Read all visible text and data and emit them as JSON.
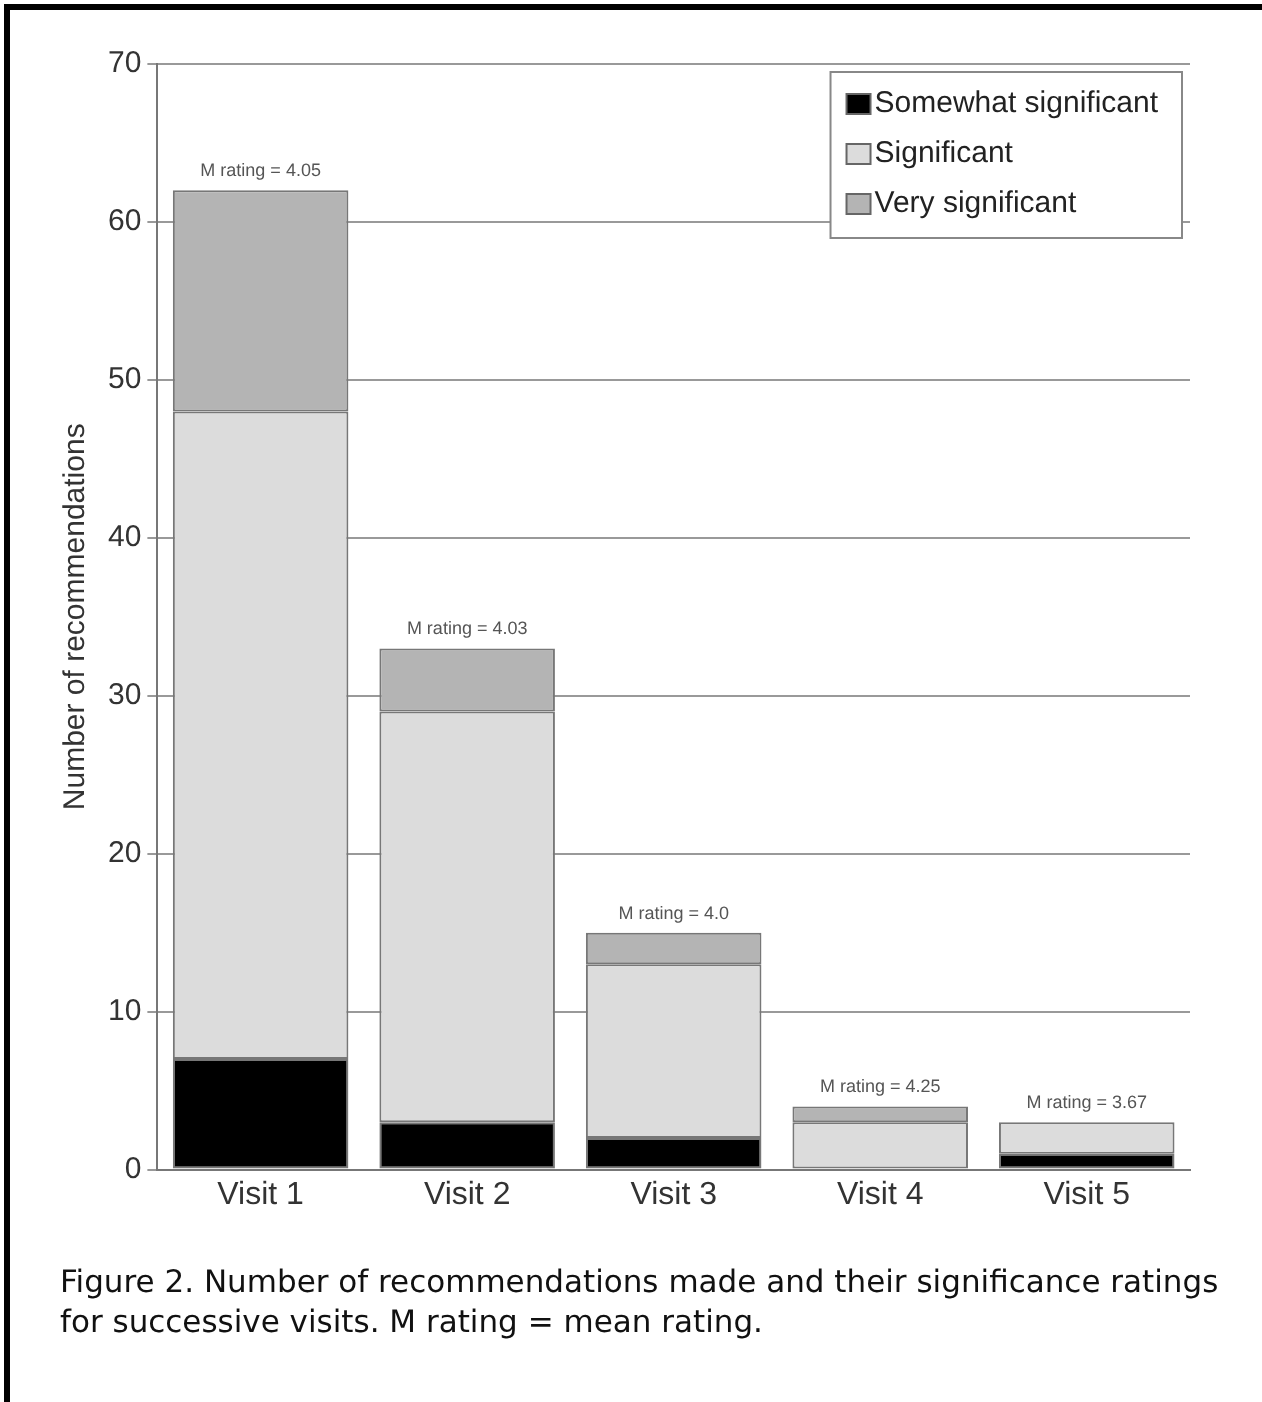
{
  "chart_data": {
    "type": "bar",
    "stacked": true,
    "ylabel": "Number of recommendations",
    "categories": [
      "Visit 1",
      "Visit 2",
      "Visit 3",
      "Visit 4",
      "Visit 5"
    ],
    "series": [
      {
        "name": "Somewhat significant",
        "color": "#000000",
        "values": [
          7,
          3,
          2,
          0,
          1
        ]
      },
      {
        "name": "Significant",
        "color": "#dcdcdc",
        "values": [
          41,
          26,
          11,
          3,
          2
        ]
      },
      {
        "name": "Very significant",
        "color": "#b4b4b4",
        "values": [
          14,
          4,
          2,
          1,
          0
        ]
      }
    ],
    "ylim": [
      0,
      70
    ],
    "yticks": [
      0,
      10,
      20,
      30,
      40,
      50,
      60,
      70
    ],
    "grid": "y",
    "legend": "top right",
    "annotations": [
      {
        "text": "M rating = 4.05",
        "x": "Visit 1",
        "y": 62
      },
      {
        "text": "M rating = 4.03",
        "x": "Visit 2",
        "y": 33
      },
      {
        "text": "M rating = 4.0",
        "x": "Visit 3",
        "y": 15
      },
      {
        "text": "M rating = 4.25",
        "x": "Visit 4",
        "y": 4
      },
      {
        "text": "M rating = 3.67",
        "x": "Visit 5",
        "y": 3
      },
      "Figure 2. Number of recommendations made and their significance ratings for successive visits. M rating = mean rating."
    ]
  }
}
